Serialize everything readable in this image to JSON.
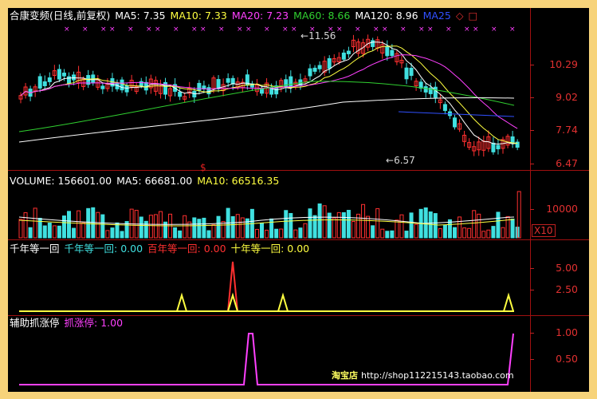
{
  "colors": {
    "background": "#000000",
    "frame": "#f7d37a",
    "up": "#ff3030",
    "down": "#40e0e0",
    "ma5": "#ffffff",
    "ma10": "#ffff40",
    "ma20": "#ff40ff",
    "ma60": "#30d030",
    "ma120": "#ffffff",
    "ma250": "#3050ff"
  },
  "main_panel": {
    "title": "合康变频(日线,前复权)",
    "ma5": "MA5: 7.35",
    "ma10": "MA10: 7.33",
    "ma20": "MA20: 7.23",
    "ma60": "MA60: 8.66",
    "ma120": "MA120: 8.96",
    "ma250": "MA25",
    "extra_icon": "diamond-icon",
    "price_ticks": [
      "10.29",
      "9.02",
      "7.74",
      "6.47"
    ],
    "high_label": "11.56",
    "low_label": "6.57",
    "signal_mark": "$"
  },
  "volume_panel": {
    "title": "VOLUME: 156601.00",
    "ma5": "MA5: 66681.00",
    "ma10": "MA10: 66516.35",
    "ticks": [
      "10000"
    ],
    "unit": "X10"
  },
  "indicator1": {
    "title": "千年等一回",
    "line1": "千年等一回: 0.00",
    "line2": "百年等一回: 0.00",
    "line3": "十年等一回: 0.00",
    "ticks": [
      "5.00",
      "2.50"
    ]
  },
  "indicator2": {
    "title": "辅助抓涨停",
    "line1": "抓涨停: 1.00",
    "ticks": [
      "1.00",
      "0.50"
    ]
  },
  "watermark": {
    "shop_name": "淘宝店",
    "url": "http://shop112215143.taobao.com"
  }
}
